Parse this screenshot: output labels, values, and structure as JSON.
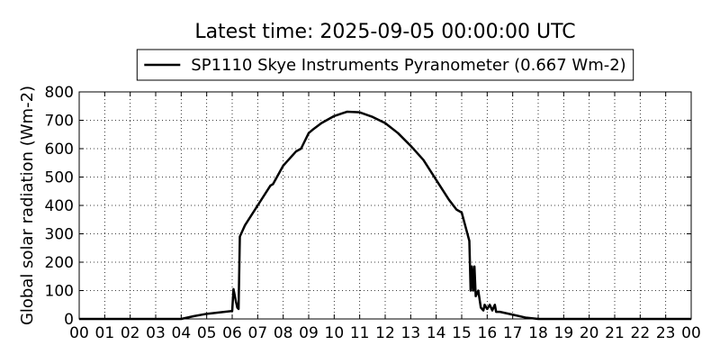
{
  "chart_data": {
    "type": "line",
    "title": "Latest time: 2025-09-05 00:00:00 UTC",
    "y_label": "Global solar radiation (Wm-2)",
    "x": [
      0,
      4.0,
      4.5,
      5.0,
      5.5,
      6.0,
      6.05,
      6.15,
      6.2,
      6.25,
      6.3,
      6.5,
      7.0,
      7.5,
      7.6,
      8.0,
      8.5,
      8.7,
      9.0,
      9.2,
      9.5,
      10.0,
      10.5,
      11.0,
      11.5,
      12.0,
      12.5,
      13.0,
      13.5,
      14.0,
      14.5,
      14.8,
      15.0,
      15.3,
      15.35,
      15.4,
      15.45,
      15.5,
      15.55,
      15.65,
      15.75,
      15.85,
      15.9,
      16.0,
      16.1,
      16.2,
      16.3,
      16.35,
      16.5,
      17.0,
      17.5,
      18.0,
      24.0
    ],
    "series": [
      {
        "name": "SP1110 Skye Instruments Pyranometer (0.667 Wm-2)",
        "color": "#000000",
        "values": [
          0,
          0,
          10,
          18,
          23,
          28,
          105,
          60,
          40,
          35,
          290,
          330,
          400,
          470,
          475,
          540,
          590,
          600,
          655,
          670,
          690,
          715,
          730,
          728,
          712,
          690,
          655,
          610,
          560,
          490,
          420,
          385,
          375,
          275,
          100,
          185,
          100,
          185,
          80,
          100,
          40,
          30,
          50,
          35,
          50,
          30,
          50,
          25,
          25,
          15,
          5,
          0,
          0
        ]
      }
    ],
    "xlim": [
      0,
      24
    ],
    "xticks": [
      {
        "value": 0,
        "label": "00"
      },
      {
        "value": 1,
        "label": "01"
      },
      {
        "value": 2,
        "label": "02"
      },
      {
        "value": 3,
        "label": "03"
      },
      {
        "value": 4,
        "label": "04"
      },
      {
        "value": 5,
        "label": "05"
      },
      {
        "value": 6,
        "label": "06"
      },
      {
        "value": 7,
        "label": "07"
      },
      {
        "value": 8,
        "label": "08"
      },
      {
        "value": 9,
        "label": "09"
      },
      10,
      11,
      12,
      13,
      14,
      15,
      16,
      17,
      18,
      19,
      20,
      21,
      22,
      23,
      {
        "value": 24,
        "label": "00"
      }
    ],
    "ylim": [
      0,
      800
    ],
    "yticks": [
      0,
      100,
      200,
      300,
      400,
      500,
      600,
      700,
      800
    ],
    "grid": true,
    "legend": "top"
  }
}
